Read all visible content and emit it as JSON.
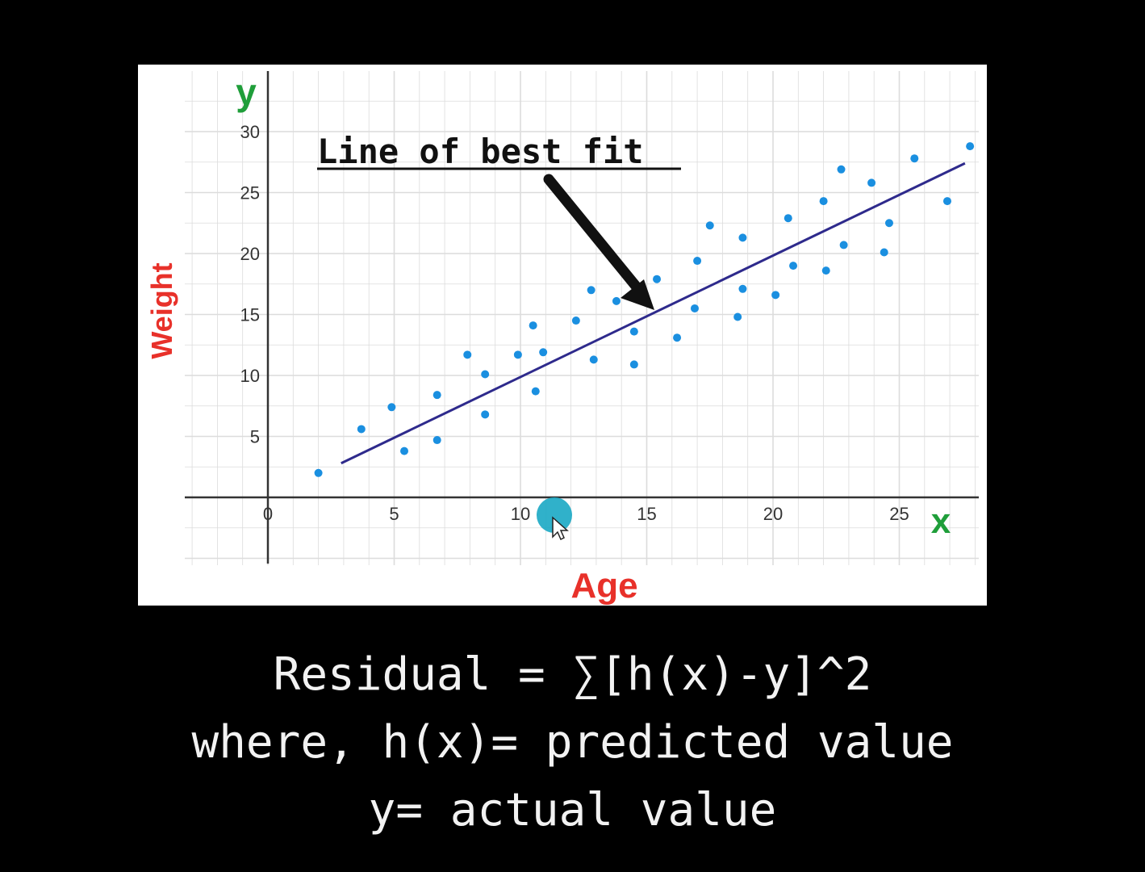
{
  "colors": {
    "background": "#000000",
    "panel": "#ffffff",
    "grid": "#dcdcdc",
    "axis": "#333333",
    "points": "#1a8fe0",
    "fit_line": "#2e2a8c",
    "axis_title": "#e8312a",
    "axis_letter": "#1f9e3a",
    "annotation": "#111111",
    "cursor_highlight": "#1aa9c4",
    "formula_text": "#f2f2f2"
  },
  "chart_data": {
    "type": "scatter",
    "xlabel": "Age",
    "ylabel": "Weight",
    "x_axis_letter": "x",
    "y_axis_letter": "y",
    "xlim": [
      -3,
      28
    ],
    "ylim": [
      -5,
      33
    ],
    "x_ticks": [
      0,
      5,
      10,
      15,
      20,
      25
    ],
    "y_ticks": [
      5,
      10,
      15,
      20,
      25,
      30
    ],
    "grid": true,
    "annotation": "Line of best fit",
    "points": [
      {
        "x": 2.0,
        "y": 2.0
      },
      {
        "x": 3.7,
        "y": 5.6
      },
      {
        "x": 4.9,
        "y": 7.4
      },
      {
        "x": 5.4,
        "y": 3.8
      },
      {
        "x": 6.7,
        "y": 8.4
      },
      {
        "x": 6.7,
        "y": 4.7
      },
      {
        "x": 7.9,
        "y": 11.7
      },
      {
        "x": 8.6,
        "y": 10.1
      },
      {
        "x": 8.6,
        "y": 6.8
      },
      {
        "x": 9.9,
        "y": 11.7
      },
      {
        "x": 10.5,
        "y": 14.1
      },
      {
        "x": 10.6,
        "y": 8.7
      },
      {
        "x": 10.9,
        "y": 11.9
      },
      {
        "x": 12.2,
        "y": 14.5
      },
      {
        "x": 12.8,
        "y": 17.0
      },
      {
        "x": 12.9,
        "y": 11.3
      },
      {
        "x": 13.8,
        "y": 16.1
      },
      {
        "x": 14.5,
        "y": 13.6
      },
      {
        "x": 14.5,
        "y": 10.9
      },
      {
        "x": 15.4,
        "y": 17.9
      },
      {
        "x": 16.2,
        "y": 13.1
      },
      {
        "x": 16.9,
        "y": 15.5
      },
      {
        "x": 17.0,
        "y": 19.4
      },
      {
        "x": 17.5,
        "y": 22.3
      },
      {
        "x": 18.6,
        "y": 14.8
      },
      {
        "x": 18.8,
        "y": 17.1
      },
      {
        "x": 18.8,
        "y": 21.3
      },
      {
        "x": 20.1,
        "y": 16.6
      },
      {
        "x": 20.6,
        "y": 22.9
      },
      {
        "x": 20.8,
        "y": 19.0
      },
      {
        "x": 22.0,
        "y": 24.3
      },
      {
        "x": 22.1,
        "y": 18.6
      },
      {
        "x": 22.7,
        "y": 26.9
      },
      {
        "x": 22.8,
        "y": 20.7
      },
      {
        "x": 23.9,
        "y": 25.8
      },
      {
        "x": 24.4,
        "y": 20.1
      },
      {
        "x": 24.6,
        "y": 22.5
      },
      {
        "x": 25.6,
        "y": 27.8
      },
      {
        "x": 26.9,
        "y": 24.3
      },
      {
        "x": 27.8,
        "y": 28.8
      }
    ],
    "fit_line": {
      "x": [
        2.9,
        27.6
      ],
      "y": [
        2.8,
        27.4
      ]
    }
  },
  "formula": {
    "line1": "Residual = ∑[h(x)-y]^2",
    "line2": "where, h(x)= predicted value",
    "line3": "y= actual value"
  }
}
